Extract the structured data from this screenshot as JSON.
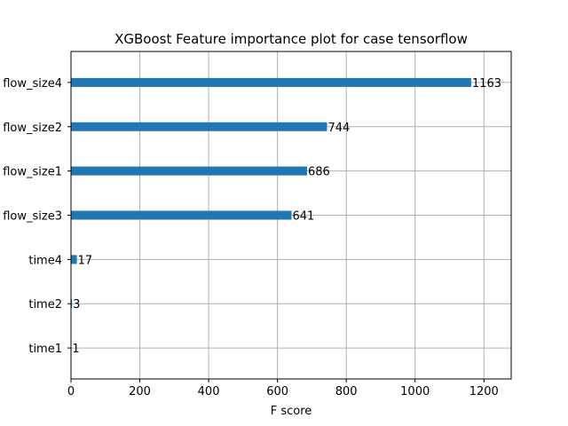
{
  "chart_data": {
    "type": "bar",
    "orientation": "horizontal",
    "title": "XGBoost Feature importance plot for case tensorflow",
    "xlabel": "F score",
    "ylabel": "",
    "categories": [
      "flow_size4",
      "flow_size2",
      "flow_size1",
      "flow_size3",
      "time4",
      "time2",
      "time1"
    ],
    "values": [
      1163,
      744,
      686,
      641,
      17,
      3,
      1
    ],
    "xlim": [
      0,
      1279.3
    ],
    "xticks": [
      0,
      200,
      400,
      600,
      800,
      1000,
      1200
    ],
    "grid": true,
    "bar_color": "#1f77b4",
    "grid_color": "#b0b0b0"
  }
}
